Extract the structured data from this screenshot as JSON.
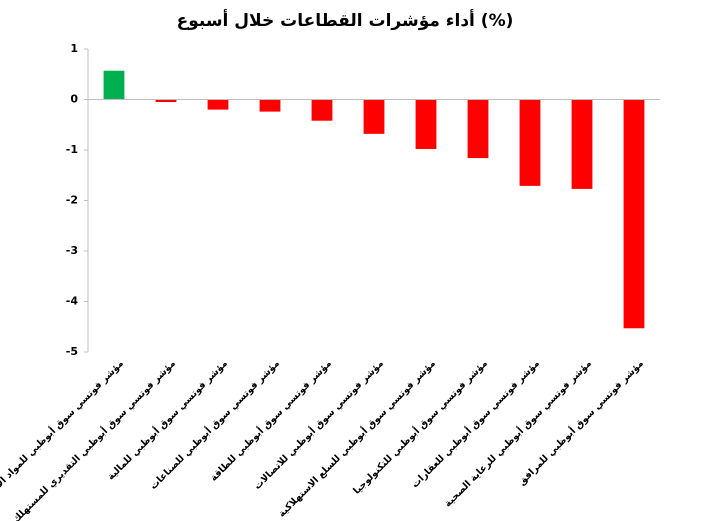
{
  "chart_data": {
    "type": "bar",
    "title": "أداء مؤشرات القطاعات خلال أسبوع (%)",
    "categories": [
      "مؤشر فوتسي سوق أبوظبي للمواد الأساسية",
      "مؤشر فوتسي سوق أبوظبي التقديري للمستهلك",
      "مؤشر فوتسي سوق أبوظبي للمالية",
      "مؤشر فوتسي سوق أبوظبي للصناعات",
      "مؤشر فوتسي سوق أبوظبي للطاقة",
      "مؤشر فوتسي سوق أبوظبي للاتصالات",
      "مؤشر فوتسي سوق أبوظبي للسلع الاستهلاكية",
      "مؤشر فوتسي سوق أبوظبي للتكنولوجيا",
      "مؤشر فوتسي سوق أبوظبي للعقارات",
      "مؤشر فوتسي سوق أبوظبي للرعاية الصحية",
      "مؤشر فوتسي سوق أبوظبي للمرافق"
    ],
    "values": [
      0.57,
      -0.05,
      -0.2,
      -0.24,
      -0.42,
      -0.68,
      -0.98,
      -1.16,
      -1.71,
      -1.77,
      -4.53
    ],
    "colors": [
      "#00b050",
      "#ff0000",
      "#ff0000",
      "#ff0000",
      "#ff0000",
      "#ff0000",
      "#ff0000",
      "#ff0000",
      "#ff0000",
      "#ff0000",
      "#ff0000"
    ],
    "ylim": [
      -5,
      1
    ],
    "yticks": [
      1,
      0,
      -1,
      -2,
      -3,
      -4,
      -5
    ],
    "grid": false
  }
}
